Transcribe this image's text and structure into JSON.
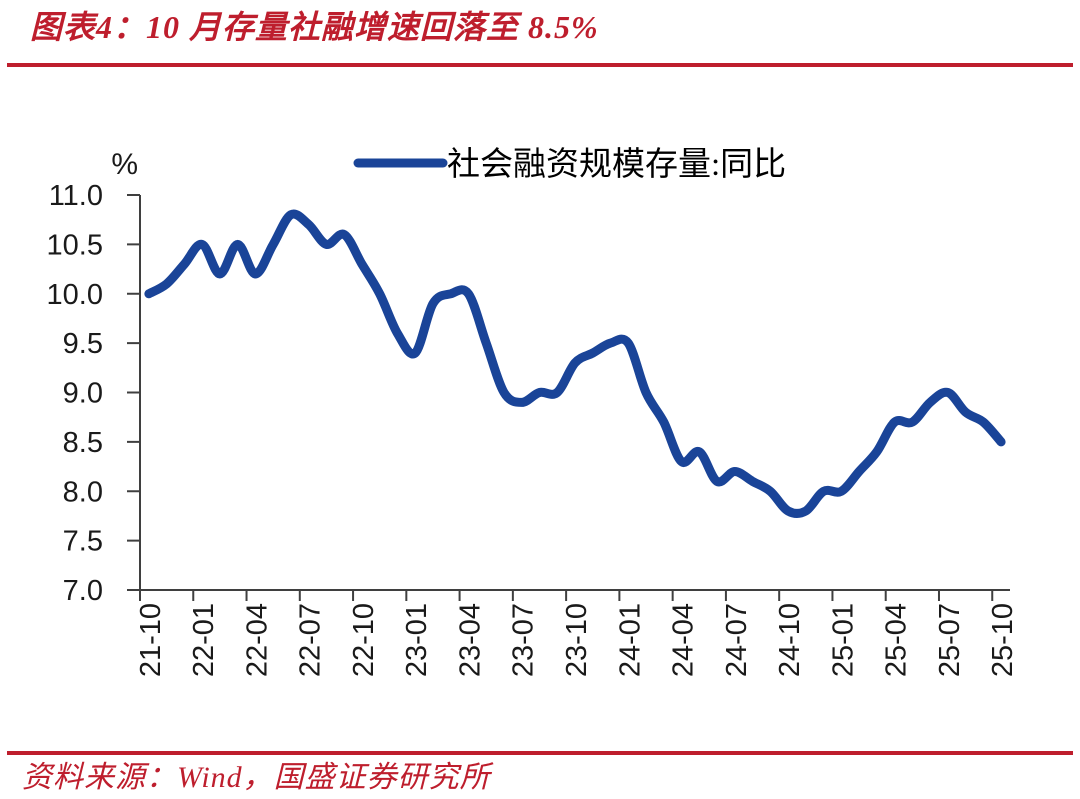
{
  "header": {
    "title": "图表4：10 月存量社融增速回落至 8.5%"
  },
  "footer": {
    "source": "资料来源：Wind，国盛证券研究所"
  },
  "colors": {
    "accent_red": "#BE1E2D",
    "line_blue": "#1A4498",
    "axis": "#3F3F3F",
    "tick_label": "#1A1A1A",
    "legend_text": "#000000"
  },
  "chart_data": {
    "type": "line",
    "title": "图表4：10 月存量社融增速回落至 8.5%",
    "unit_label": "%",
    "legend": [
      {
        "label": "社会融资规模存量:同比",
        "color": "#1A4498"
      }
    ],
    "legend_position": "top",
    "grid": false,
    "smooth": true,
    "ylim": [
      7.0,
      11.0
    ],
    "yticks": [
      "11.0",
      "10.5",
      "10.0",
      "9.5",
      "9.0",
      "8.5",
      "8.0",
      "7.5",
      "7.0"
    ],
    "xtick_interval": 3,
    "xticks": [
      "21-10",
      "22-01",
      "22-04",
      "22-07",
      "22-10",
      "23-01",
      "23-04",
      "23-07",
      "23-10",
      "24-01",
      "24-04",
      "24-07",
      "24-10",
      "25-01",
      "25-04",
      "25-07",
      "25-10"
    ],
    "x": [
      "2021-10",
      "2021-11",
      "2021-12",
      "2022-01",
      "2022-02",
      "2022-03",
      "2022-04",
      "2022-05",
      "2022-06",
      "2022-07",
      "2022-08",
      "2022-09",
      "2022-10",
      "2022-11",
      "2022-12",
      "2023-01",
      "2023-02",
      "2023-03",
      "2023-04",
      "2023-05",
      "2023-06",
      "2023-07",
      "2023-08",
      "2023-09",
      "2023-10",
      "2023-11",
      "2023-12",
      "2024-01",
      "2024-02",
      "2024-03",
      "2024-04",
      "2024-05",
      "2024-06",
      "2024-07",
      "2024-08",
      "2024-09",
      "2024-10",
      "2024-11",
      "2024-12",
      "2025-01",
      "2025-02",
      "2025-03",
      "2025-04",
      "2025-05",
      "2025-06",
      "2025-07",
      "2025-08",
      "2025-09",
      "2025-10"
    ],
    "series": [
      {
        "name": "社会融资规模存量:同比",
        "color": "#1A4498",
        "values": [
          10.0,
          10.1,
          10.3,
          10.5,
          10.2,
          10.5,
          10.2,
          10.5,
          10.8,
          10.7,
          10.5,
          10.6,
          10.3,
          10.0,
          9.6,
          9.4,
          9.9,
          10.0,
          10.0,
          9.5,
          9.0,
          8.9,
          9.0,
          9.0,
          9.3,
          9.4,
          9.5,
          9.5,
          9.0,
          8.7,
          8.3,
          8.4,
          8.1,
          8.2,
          8.1,
          8.0,
          7.8,
          7.8,
          8.0,
          8.0,
          8.2,
          8.4,
          8.7,
          8.7,
          8.9,
          9.0,
          8.8,
          8.7,
          8.5
        ]
      }
    ]
  }
}
